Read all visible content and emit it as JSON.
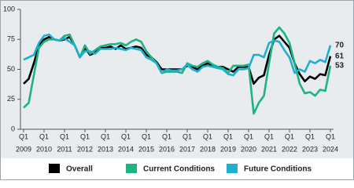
{
  "chart_data": {
    "type": "line",
    "x": [
      2009,
      2009.25,
      2009.5,
      2009.75,
      2010,
      2010.25,
      2010.5,
      2010.75,
      2011,
      2011.25,
      2011.5,
      2011.75,
      2012,
      2012.25,
      2012.5,
      2012.75,
      2013,
      2013.25,
      2013.5,
      2013.75,
      2014,
      2014.25,
      2014.5,
      2014.75,
      2015,
      2015.25,
      2015.5,
      2015.75,
      2016,
      2016.25,
      2016.5,
      2016.75,
      2017,
      2017.25,
      2017.5,
      2017.75,
      2018,
      2018.25,
      2018.5,
      2018.75,
      2019,
      2019.25,
      2019.5,
      2019.75,
      2020,
      2020.25,
      2020.5,
      2020.75,
      2021,
      2021.25,
      2021.5,
      2021.75,
      2022,
      2022.25,
      2022.5,
      2022.75,
      2023,
      2023.25,
      2023.5,
      2023.75,
      2024
    ],
    "series": [
      {
        "name": "Overall",
        "color": "#000000",
        "values": [
          38,
          42,
          55,
          70,
          75,
          77,
          75,
          74,
          75,
          77,
          70,
          60,
          68,
          62,
          64,
          68,
          68,
          69,
          67,
          70,
          67,
          68,
          69,
          68,
          62,
          60,
          56,
          50,
          50,
          50,
          50,
          50,
          53,
          52,
          50,
          53,
          55,
          53,
          52,
          52,
          50,
          48,
          52,
          52,
          52,
          38,
          43,
          45,
          62,
          75,
          78,
          73,
          68,
          55,
          46,
          40,
          44,
          42,
          46,
          45,
          61
        ]
      },
      {
        "name": "Current Conditions",
        "color": "#1db482",
        "values": [
          18,
          22,
          45,
          68,
          73,
          75,
          75,
          74,
          78,
          79,
          70,
          60,
          70,
          63,
          66,
          69,
          70,
          71,
          71,
          72,
          70,
          73,
          75,
          73,
          65,
          60,
          55,
          47,
          48,
          48,
          48,
          47,
          55,
          53,
          52,
          55,
          57,
          54,
          52,
          51,
          47,
          53,
          53,
          53,
          54,
          13,
          22,
          28,
          55,
          80,
          85,
          80,
          72,
          55,
          38,
          30,
          31,
          28,
          33,
          32,
          53
        ]
      },
      {
        "name": "Future Conditions",
        "color": "#1fb0d0",
        "values": [
          58,
          60,
          62,
          72,
          78,
          79,
          75,
          74,
          76,
          73,
          70,
          60,
          65,
          65,
          63,
          67,
          67,
          67,
          68,
          67,
          66,
          68,
          67,
          66,
          60,
          58,
          55,
          47,
          50,
          49,
          49,
          50,
          54,
          50,
          48,
          52,
          53,
          52,
          51,
          50,
          46,
          45,
          50,
          50,
          51,
          62,
          62,
          60,
          72,
          74,
          73,
          66,
          60,
          47,
          50,
          48,
          57,
          55,
          58,
          56,
          70
        ]
      }
    ],
    "xlim": [
      2009,
      2024
    ],
    "xticks": [
      {
        "value": 2009,
        "label": "Q1"
      },
      {
        "value": 2010,
        "label": "Q1"
      },
      {
        "value": 2011,
        "label": "Q1"
      },
      {
        "value": 2012,
        "label": "Q1"
      },
      {
        "value": 2013,
        "label": "Q1"
      },
      {
        "value": 2014,
        "label": "Q1"
      },
      {
        "value": 2015,
        "label": "Q1"
      },
      {
        "value": 2016,
        "label": "Q1"
      },
      {
        "value": 2017,
        "label": "Q1"
      },
      {
        "value": 2018,
        "label": "Q1"
      },
      {
        "value": 2019,
        "label": "Q1"
      },
      {
        "value": 2020,
        "label": "Q1"
      },
      {
        "value": 2021,
        "label": "Q1"
      },
      {
        "value": 2022,
        "label": "Q1"
      },
      {
        "value": 2023,
        "label": "Q1"
      },
      {
        "value": 2024,
        "label": "Q1"
      }
    ],
    "year_ticks": [
      2009,
      2010,
      2011,
      2012,
      2013,
      2014,
      2015,
      2016,
      2017,
      2018,
      2019,
      2020,
      2021,
      2022,
      2023,
      2024
    ],
    "ylim": [
      0,
      100
    ],
    "yticks": [
      0,
      25,
      50,
      75,
      100
    ],
    "grid": false
  }
}
